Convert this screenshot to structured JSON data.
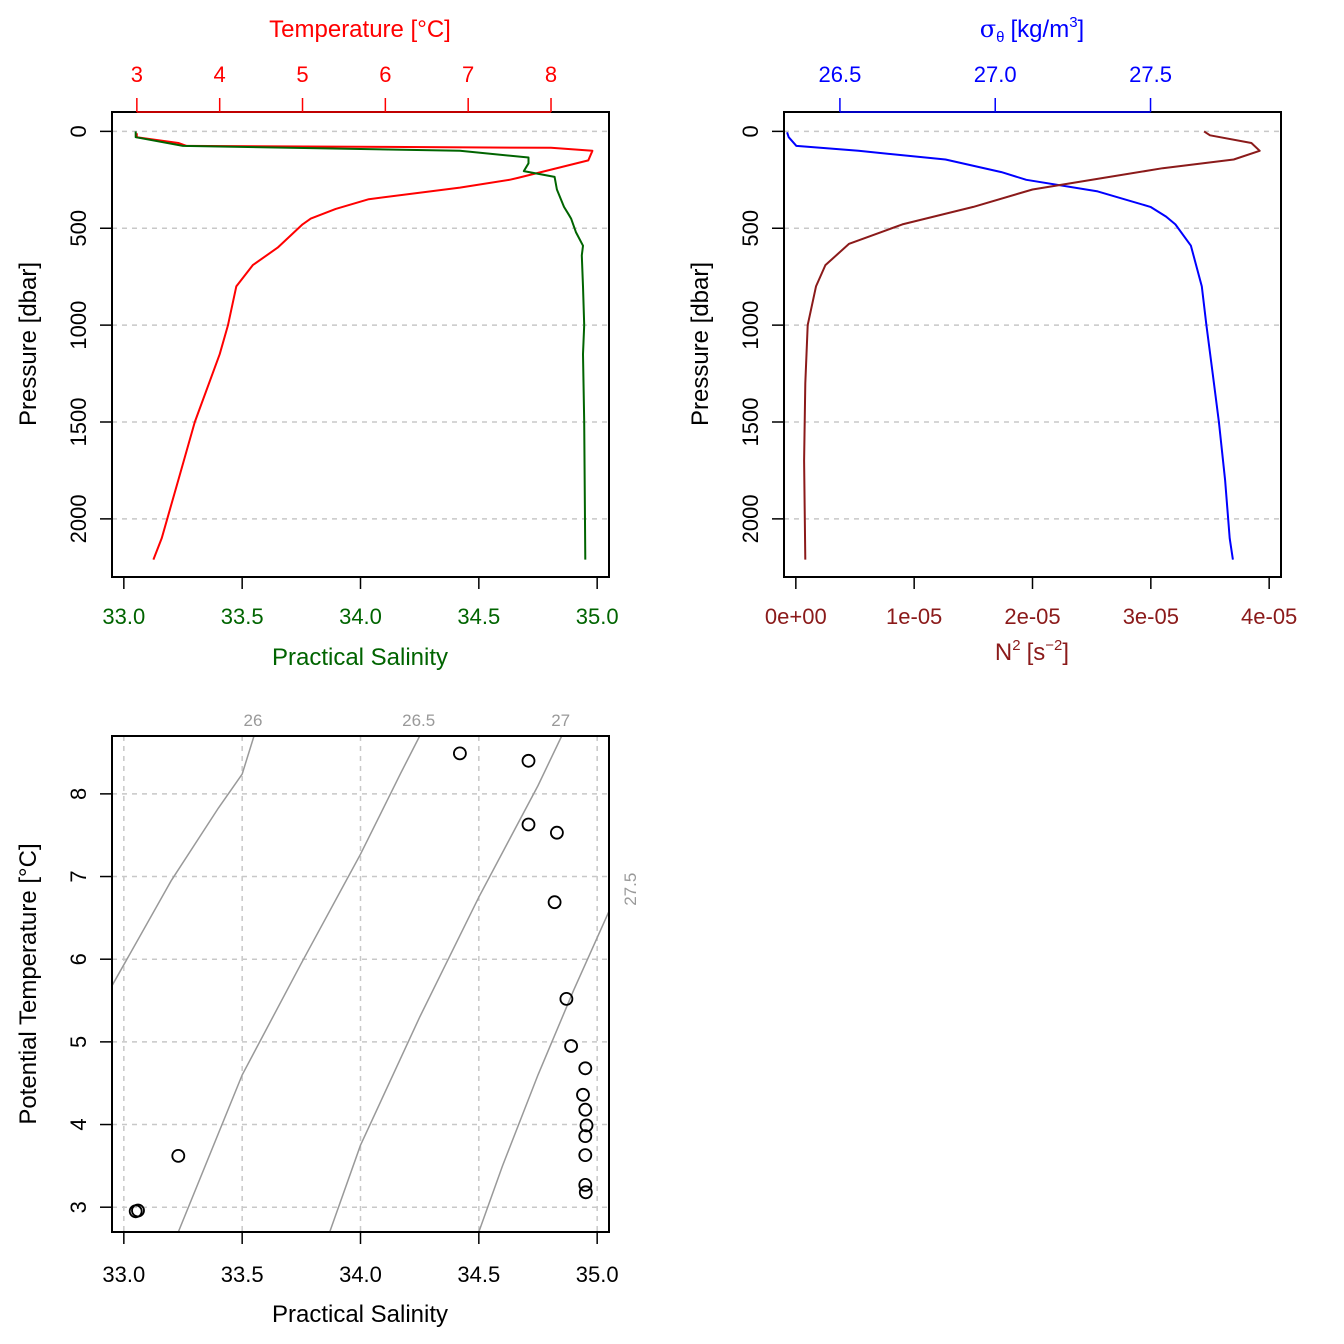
{
  "colors": {
    "temperature": "#ff0000",
    "salinity": "#006400",
    "sigma": "#0000ff",
    "n2": "#8b1a1a",
    "isopycnal": "#999999",
    "grid": "#c8c8c8",
    "axis": "#000000"
  },
  "chart_data": [
    {
      "id": "ts-profile",
      "type": "line",
      "ylabel": "Pressure [dbar]",
      "ylim": [
        2300,
        -100
      ],
      "yticks": [
        "0",
        "500",
        "1000",
        "1500",
        "2000"
      ],
      "grid": true,
      "top_axis": {
        "label": "Temperature [°C]",
        "lim": [
          2.7,
          8.7
        ],
        "ticks": [
          "3",
          "4",
          "5",
          "6",
          "7",
          "8"
        ]
      },
      "bottom_axis": {
        "label": "Practical Salinity",
        "lim": [
          32.95,
          35.05
        ],
        "ticks": [
          "33.0",
          "33.5",
          "34.0",
          "34.5",
          "35.0"
        ]
      },
      "series": [
        {
          "name": "Temperature",
          "axis": "top",
          "points": [
            [
              3.0,
              10
            ],
            [
              3.0,
              30
            ],
            [
              3.5,
              60
            ],
            [
              3.6,
              75
            ],
            [
              6.0,
              80
            ],
            [
              8.0,
              85
            ],
            [
              8.5,
              100
            ],
            [
              8.45,
              150
            ],
            [
              7.6,
              240
            ],
            [
              7.5,
              250
            ],
            [
              6.9,
              290
            ],
            [
              5.8,
              350
            ],
            [
              5.4,
              400
            ],
            [
              5.1,
              450
            ],
            [
              5.0,
              480
            ],
            [
              4.7,
              600
            ],
            [
              4.4,
              690
            ],
            [
              4.2,
              800
            ],
            [
              4.1,
              1000
            ],
            [
              4.0,
              1150
            ],
            [
              3.7,
              1500
            ],
            [
              3.5,
              1800
            ],
            [
              3.3,
              2100
            ],
            [
              3.2,
              2210
            ]
          ]
        },
        {
          "name": "Salinity",
          "axis": "bottom",
          "points": [
            [
              33.05,
              0
            ],
            [
              33.05,
              30
            ],
            [
              33.25,
              75
            ],
            [
              34.42,
              100
            ],
            [
              34.71,
              135
            ],
            [
              34.71,
              165
            ],
            [
              34.69,
              205
            ],
            [
              34.82,
              235
            ],
            [
              34.83,
              300
            ],
            [
              34.86,
              390
            ],
            [
              34.88,
              430
            ],
            [
              34.89,
              450
            ],
            [
              34.91,
              520
            ],
            [
              34.94,
              590
            ],
            [
              34.935,
              640
            ],
            [
              34.94,
              800
            ],
            [
              34.945,
              1000
            ],
            [
              34.94,
              1150
            ],
            [
              34.945,
              1500
            ],
            [
              34.95,
              2210
            ]
          ]
        }
      ]
    },
    {
      "id": "density-profile",
      "type": "line",
      "ylabel": "Pressure [dbar]",
      "ylim": [
        2300,
        -100
      ],
      "yticks": [
        "0",
        "500",
        "1000",
        "1500",
        "2000"
      ],
      "grid": true,
      "top_axis": {
        "label_symbol": "σ",
        "label_sub": "θ",
        "label_unit": "[kg/m",
        "label_sup": "3",
        "label_close": "]",
        "lim": [
          26.32,
          27.92
        ],
        "ticks": [
          "26.5",
          "27.0",
          "27.5"
        ]
      },
      "bottom_axis": {
        "label_main": "N",
        "label_sup1": "2",
        "label_unit": "[s",
        "label_sup2": "−2",
        "label_close": "]",
        "lim": [
          -1e-06,
          4.1e-05
        ],
        "ticks": [
          "0e+00",
          "1e-05",
          "2e-05",
          "3e-05",
          "4e-05"
        ]
      },
      "series": [
        {
          "name": "sigma-theta",
          "axis": "top",
          "points": [
            [
              26.33,
              5
            ],
            [
              26.335,
              30
            ],
            [
              26.36,
              75
            ],
            [
              26.56,
              100
            ],
            [
              26.84,
              145
            ],
            [
              27.02,
              210
            ],
            [
              27.1,
              250
            ],
            [
              27.33,
              310
            ],
            [
              27.5,
              390
            ],
            [
              27.55,
              440
            ],
            [
              27.58,
              480
            ],
            [
              27.63,
              590
            ],
            [
              27.665,
              800
            ],
            [
              27.68,
              1000
            ],
            [
              27.7,
              1250
            ],
            [
              27.72,
              1500
            ],
            [
              27.74,
              1800
            ],
            [
              27.755,
              2100
            ],
            [
              27.765,
              2210
            ]
          ]
        },
        {
          "name": "N2",
          "axis": "bottom",
          "points": [
            [
              3.45e-05,
              0
            ],
            [
              3.5e-05,
              20
            ],
            [
              3.85e-05,
              60
            ],
            [
              3.92e-05,
              100
            ],
            [
              3.7e-05,
              145
            ],
            [
              3.1e-05,
              190
            ],
            [
              2.6e-05,
              240
            ],
            [
              2e-05,
              300
            ],
            [
              1.5e-05,
              390
            ],
            [
              9e-06,
              480
            ],
            [
              4.5e-06,
              580
            ],
            [
              2.5e-06,
              690
            ],
            [
              1.7e-06,
              800
            ],
            [
              1e-06,
              1000
            ],
            [
              8e-07,
              1300
            ],
            [
              7e-07,
              1700
            ],
            [
              8e-07,
              2210
            ]
          ]
        }
      ]
    },
    {
      "id": "theta-s-diagram",
      "type": "scatter",
      "xlabel": "Practical Salinity",
      "ylabel": "Potential Temperature [°C]",
      "xlim": [
        32.95,
        35.05
      ],
      "ylim": [
        2.7,
        8.7
      ],
      "xticks": [
        "33.0",
        "33.5",
        "34.0",
        "34.5",
        "35.0"
      ],
      "yticks": [
        "3",
        "4",
        "5",
        "6",
        "7",
        "8"
      ],
      "grid": true,
      "points": [
        [
          33.05,
          2.95
        ],
        [
          33.06,
          2.96
        ],
        [
          33.23,
          3.62
        ],
        [
          34.42,
          8.49
        ],
        [
          34.71,
          8.4
        ],
        [
          34.71,
          7.63
        ],
        [
          34.83,
          7.53
        ],
        [
          34.82,
          6.69
        ],
        [
          34.87,
          5.52
        ],
        [
          34.89,
          4.95
        ],
        [
          34.95,
          4.68
        ],
        [
          34.94,
          4.36
        ],
        [
          34.95,
          4.18
        ],
        [
          34.955,
          3.99
        ],
        [
          34.95,
          3.86
        ],
        [
          34.95,
          3.63
        ],
        [
          34.95,
          3.27
        ],
        [
          34.952,
          3.18
        ]
      ],
      "isopycnals": [
        {
          "label": "26",
          "label_pos": "top",
          "points": [
            [
              32.95,
              5.68
            ],
            [
              33.2,
              6.95
            ],
            [
              33.4,
              7.83
            ],
            [
              33.5,
              8.24
            ],
            [
              33.55,
              8.7
            ]
          ]
        },
        {
          "label": "26.5",
          "label_pos": "top",
          "points": [
            [
              33.23,
              2.7
            ],
            [
              33.5,
              4.6
            ],
            [
              33.75,
              5.95
            ],
            [
              34.0,
              7.27
            ],
            [
              34.17,
              8.25
            ],
            [
              34.25,
              8.7
            ]
          ]
        },
        {
          "label": "27",
          "label_pos": "top",
          "points": [
            [
              33.87,
              2.7
            ],
            [
              34.0,
              3.75
            ],
            [
              34.25,
              5.3
            ],
            [
              34.5,
              6.75
            ],
            [
              34.75,
              8.1
            ],
            [
              34.85,
              8.7
            ]
          ]
        },
        {
          "label": "27.5",
          "label_pos": "right",
          "points": [
            [
              34.5,
              2.7
            ],
            [
              34.6,
              3.5
            ],
            [
              34.75,
              4.6
            ],
            [
              34.9,
              5.62
            ],
            [
              35.05,
              6.58
            ]
          ]
        }
      ]
    }
  ]
}
